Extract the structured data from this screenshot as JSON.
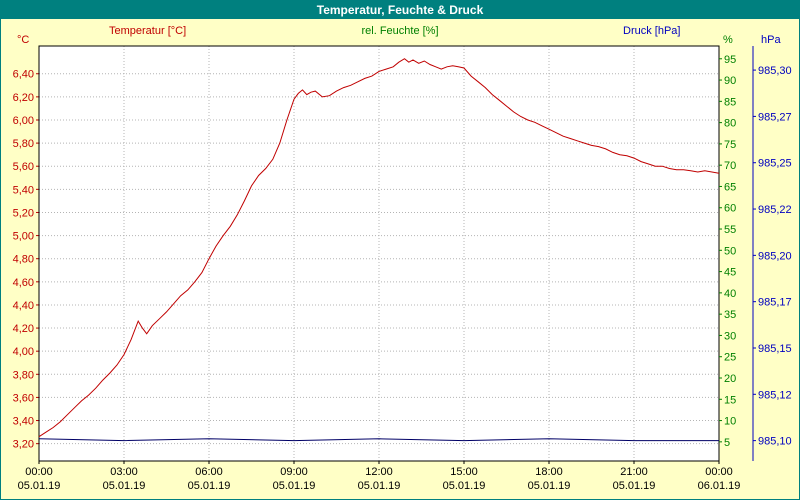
{
  "header": {
    "title": "Temperatur, Feuchte & Druck"
  },
  "axes_titles": {
    "temp_unit": "°C",
    "temp_title": "Temperatur [°C]",
    "humidity_title": "rel. Feuchte [%]",
    "pressure_title": "Druck [hPa]",
    "humidity_unit": "%",
    "pressure_unit": "hPa"
  },
  "colors": {
    "titlebar": "#00807f",
    "background": "#ffffc6",
    "temperature": "#c00000",
    "humidity": "#008000",
    "pressure": "#0000c0",
    "pressure_line": "#000066",
    "grid": "#b4b4b4",
    "plot_border": "#000000"
  },
  "chart_data": {
    "type": "line",
    "title": "Temperatur, Feuchte & Druck",
    "grid": true,
    "grid_color": "#b4b4b4",
    "plot_background": "#ffffff",
    "axes": {
      "temperature": {
        "min": 3.05,
        "max": 6.64,
        "unit": "°C"
      },
      "humidity": {
        "min": 0.5,
        "max": 98,
        "unit": "%"
      },
      "pressure": {
        "min": 985.089,
        "max": 985.313,
        "unit": "hPa"
      }
    },
    "x_axis": {
      "tick_hours": [
        0,
        3,
        6,
        9,
        12,
        15,
        18,
        21,
        24
      ],
      "tick_times": [
        "00:00",
        "03:00",
        "06:00",
        "09:00",
        "12:00",
        "15:00",
        "18:00",
        "21:00",
        "00:00"
      ],
      "tick_dates": [
        "05.01.19",
        "05.01.19",
        "05.01.19",
        "05.01.19",
        "05.01.19",
        "05.01.19",
        "05.01.19",
        "05.01.19",
        "06.01.19"
      ]
    },
    "y_axis_left": {
      "title": "Temperatur [°C]",
      "tick_values": [
        6.4,
        6.2,
        6.0,
        5.8,
        5.6,
        5.4,
        5.2,
        5.0,
        4.8,
        4.6,
        4.4,
        4.2,
        4.0,
        3.8,
        3.6,
        3.4,
        3.2
      ],
      "tick_labels": [
        "6,40",
        "6,20",
        "6,00",
        "5,80",
        "5,60",
        "5,40",
        "5,20",
        "5,00",
        "4,80",
        "4,60",
        "4,40",
        "4,20",
        "4,00",
        "3,80",
        "3,60",
        "3,40",
        "3,20"
      ]
    },
    "y_axis_humidity": {
      "title": "rel. Feuchte [%]",
      "tick_values": [
        95,
        90,
        85,
        80,
        75,
        70,
        65,
        60,
        55,
        50,
        45,
        40,
        35,
        30,
        25,
        20,
        15,
        10,
        5
      ],
      "tick_labels": [
        "95",
        "90",
        "85",
        "80",
        "75",
        "70",
        "65",
        "60",
        "55",
        "50",
        "45",
        "40",
        "35",
        "30",
        "25",
        "20",
        "15",
        "10",
        "5"
      ]
    },
    "y_axis_pressure": {
      "title": "Druck [hPa]",
      "tick_values": [
        985.3,
        985.275,
        985.25,
        985.225,
        985.2,
        985.175,
        985.15,
        985.125,
        985.1
      ],
      "tick_labels": [
        "985,30",
        "985,27",
        "985,25",
        "985,22",
        "985,20",
        "985,17",
        "985,15",
        "985,12",
        "985,10"
      ]
    },
    "series": [
      {
        "name": "Temperatur",
        "axis": "temperature",
        "color": "#c00000",
        "points": [
          [
            0,
            3.26
          ],
          [
            0.25,
            3.3
          ],
          [
            0.5,
            3.34
          ],
          [
            0.75,
            3.39
          ],
          [
            1,
            3.45
          ],
          [
            1.25,
            3.51
          ],
          [
            1.5,
            3.57
          ],
          [
            1.75,
            3.62
          ],
          [
            2,
            3.68
          ],
          [
            2.25,
            3.75
          ],
          [
            2.5,
            3.81
          ],
          [
            2.75,
            3.88
          ],
          [
            3,
            3.97
          ],
          [
            3.25,
            4.1
          ],
          [
            3.5,
            4.26
          ],
          [
            3.65,
            4.2
          ],
          [
            3.8,
            4.15
          ],
          [
            4,
            4.22
          ],
          [
            4.25,
            4.28
          ],
          [
            4.5,
            4.34
          ],
          [
            4.75,
            4.41
          ],
          [
            5,
            4.48
          ],
          [
            5.25,
            4.53
          ],
          [
            5.5,
            4.6
          ],
          [
            5.75,
            4.68
          ],
          [
            6,
            4.8
          ],
          [
            6.25,
            4.91
          ],
          [
            6.5,
            5.0
          ],
          [
            6.75,
            5.08
          ],
          [
            7,
            5.18
          ],
          [
            7.25,
            5.3
          ],
          [
            7.5,
            5.43
          ],
          [
            7.75,
            5.52
          ],
          [
            8,
            5.58
          ],
          [
            8.25,
            5.66
          ],
          [
            8.5,
            5.8
          ],
          [
            8.75,
            6.0
          ],
          [
            9,
            6.18
          ],
          [
            9.15,
            6.23
          ],
          [
            9.3,
            6.26
          ],
          [
            9.45,
            6.22
          ],
          [
            9.6,
            6.24
          ],
          [
            9.75,
            6.25
          ],
          [
            10,
            6.2
          ],
          [
            10.25,
            6.21
          ],
          [
            10.5,
            6.25
          ],
          [
            10.75,
            6.28
          ],
          [
            11,
            6.3
          ],
          [
            11.25,
            6.33
          ],
          [
            11.5,
            6.36
          ],
          [
            11.75,
            6.38
          ],
          [
            12,
            6.42
          ],
          [
            12.25,
            6.44
          ],
          [
            12.5,
            6.46
          ],
          [
            12.7,
            6.5
          ],
          [
            12.9,
            6.53
          ],
          [
            13.05,
            6.5
          ],
          [
            13.2,
            6.52
          ],
          [
            13.4,
            6.49
          ],
          [
            13.6,
            6.51
          ],
          [
            13.8,
            6.48
          ],
          [
            14,
            6.46
          ],
          [
            14.2,
            6.44
          ],
          [
            14.4,
            6.46
          ],
          [
            14.6,
            6.47
          ],
          [
            14.8,
            6.46
          ],
          [
            15,
            6.45
          ],
          [
            15.25,
            6.38
          ],
          [
            15.5,
            6.33
          ],
          [
            15.75,
            6.28
          ],
          [
            16,
            6.22
          ],
          [
            16.25,
            6.17
          ],
          [
            16.5,
            6.12
          ],
          [
            16.75,
            6.07
          ],
          [
            17,
            6.03
          ],
          [
            17.25,
            6.0
          ],
          [
            17.5,
            5.98
          ],
          [
            17.75,
            5.95
          ],
          [
            18,
            5.92
          ],
          [
            18.25,
            5.89
          ],
          [
            18.5,
            5.86
          ],
          [
            18.75,
            5.84
          ],
          [
            19,
            5.82
          ],
          [
            19.25,
            5.8
          ],
          [
            19.5,
            5.78
          ],
          [
            19.75,
            5.77
          ],
          [
            20,
            5.75
          ],
          [
            20.25,
            5.72
          ],
          [
            20.5,
            5.7
          ],
          [
            20.75,
            5.69
          ],
          [
            21,
            5.67
          ],
          [
            21.25,
            5.64
          ],
          [
            21.5,
            5.62
          ],
          [
            21.75,
            5.6
          ],
          [
            22,
            5.6
          ],
          [
            22.25,
            5.58
          ],
          [
            22.5,
            5.57
          ],
          [
            22.75,
            5.57
          ],
          [
            23,
            5.56
          ],
          [
            23.25,
            5.55
          ],
          [
            23.5,
            5.56
          ],
          [
            23.75,
            5.55
          ],
          [
            24,
            5.54
          ]
        ]
      },
      {
        "name": "Druck",
        "axis": "pressure",
        "color": "#000066",
        "points": [
          [
            0,
            985.101
          ],
          [
            3,
            985.1
          ],
          [
            6,
            985.101
          ],
          [
            9,
            985.1
          ],
          [
            12,
            985.101
          ],
          [
            15,
            985.1
          ],
          [
            18,
            985.101
          ],
          [
            21,
            985.1
          ],
          [
            24,
            985.1
          ]
        ]
      }
    ]
  }
}
